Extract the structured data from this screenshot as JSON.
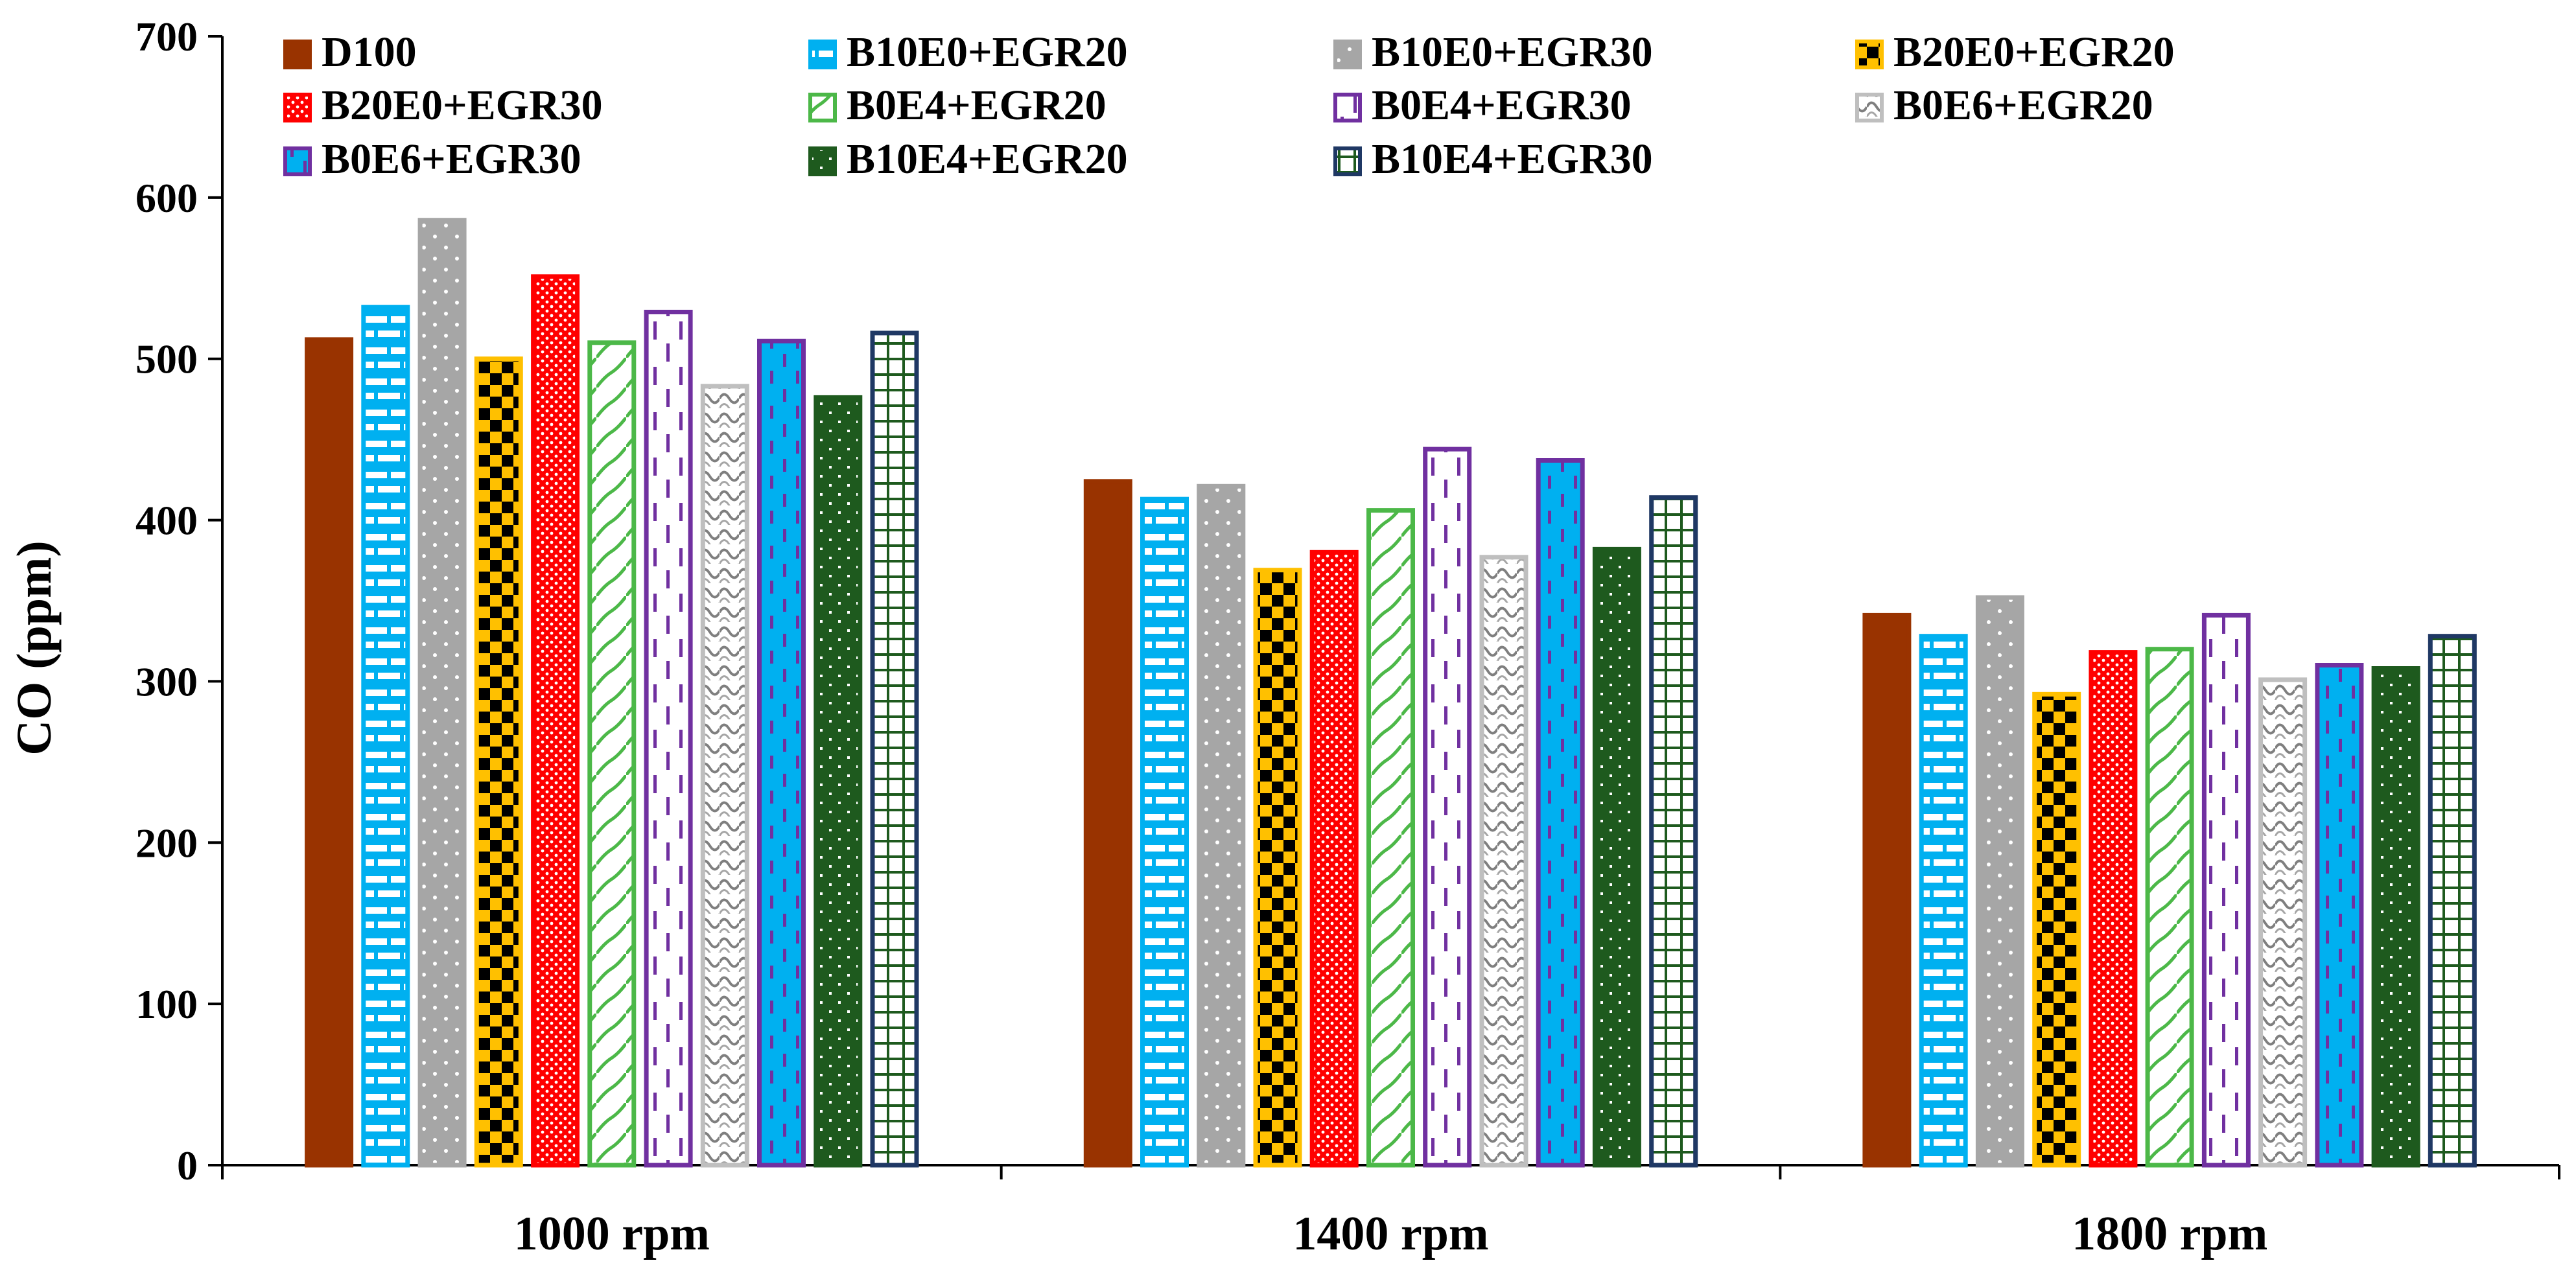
{
  "chart_data": {
    "type": "bar",
    "title": "",
    "xlabel": "",
    "ylabel": "CO (ppm)",
    "ylim": [
      0,
      700
    ],
    "yticks": [
      0,
      100,
      200,
      300,
      400,
      500,
      600,
      700
    ],
    "grid": false,
    "legend_position": "top",
    "categories": [
      "1000 rpm",
      "1400 rpm",
      "1800 rpm"
    ],
    "series": [
      {
        "name": "D100",
        "values": [
          512,
          424,
          341
        ],
        "color": "#993300",
        "edge": "#993300",
        "pattern": "solid"
      },
      {
        "name": "B10E0+EGR20",
        "values": [
          532,
          413,
          328
        ],
        "color": "#00B0F0",
        "edge": "#00B0F0",
        "pattern": "brick"
      },
      {
        "name": "B10E0+EGR30",
        "values": [
          586,
          421,
          352
        ],
        "color": "#A6A6A6",
        "edge": "#A6A6A6",
        "pattern": "dots"
      },
      {
        "name": "B20E0+EGR20",
        "values": [
          500,
          369,
          292
        ],
        "color": "#FFC000",
        "edge": "#FFC000",
        "pattern": "checker"
      },
      {
        "name": "B20E0+EGR30",
        "values": [
          551,
          380,
          318
        ],
        "color": "#FF0000",
        "edge": "#FF0000",
        "pattern": "stipple"
      },
      {
        "name": "B0E4+EGR20",
        "values": [
          510,
          406,
          320
        ],
        "color": "#4CB848",
        "edge": "#4CB848",
        "pattern": "wave"
      },
      {
        "name": "B0E4+EGR30",
        "values": [
          529,
          444,
          341
        ],
        "color": "#7030A0",
        "edge": "#7030A0",
        "pattern": "dash"
      },
      {
        "name": "B0E6+EGR20",
        "values": [
          483,
          377,
          301
        ],
        "color": "#BFBFBF",
        "edge": "#BFBFBF",
        "pattern": "shingle"
      },
      {
        "name": "B0E6+EGR30",
        "values": [
          511,
          437,
          310
        ],
        "color": "#00B0F0",
        "edge": "#7030A0",
        "pattern": "blue-dash"
      },
      {
        "name": "B10E4+EGR20",
        "values": [
          476,
          382,
          308
        ],
        "color": "#1E5A1E",
        "edge": "#1E5A1E",
        "pattern": "green-dots"
      },
      {
        "name": "B10E4+EGR30",
        "values": [
          516,
          414,
          328
        ],
        "color": "#1F3864",
        "edge": "#1F3864",
        "pattern": "grid"
      }
    ]
  }
}
